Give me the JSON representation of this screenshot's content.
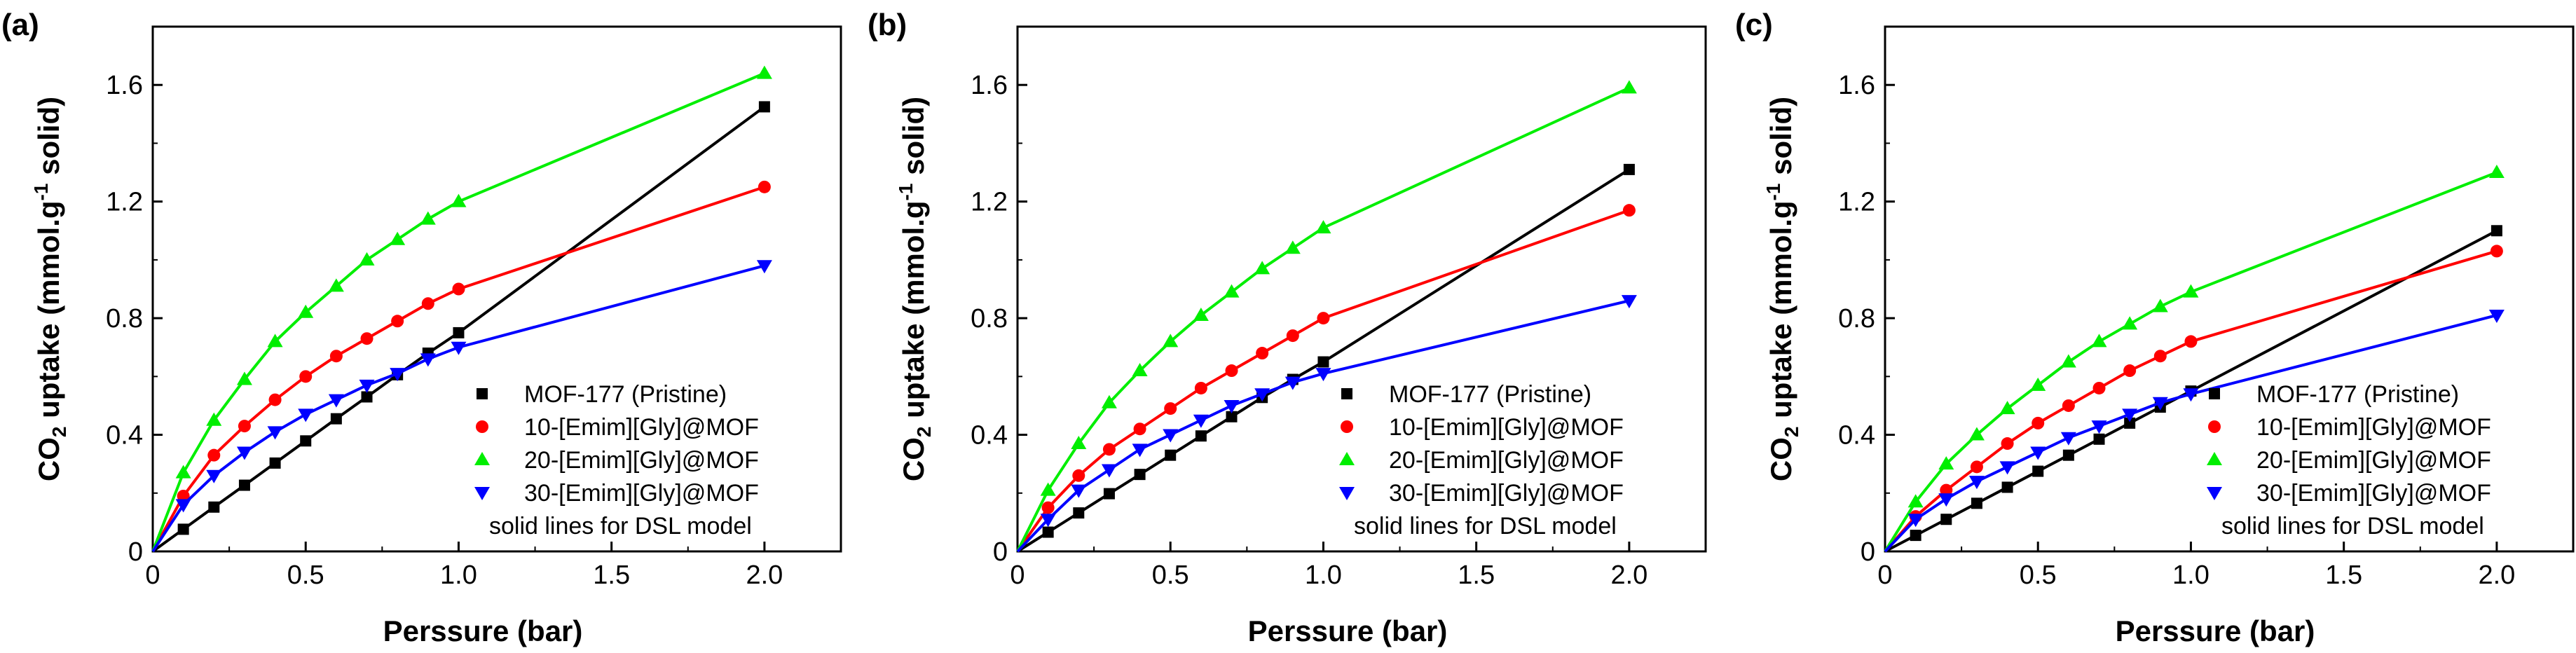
{
  "chart_data": [
    {
      "type": "scatter",
      "panel": "(a)",
      "xlabel": "Perssure (bar)",
      "ylabel_prefix": "CO",
      "ylabel_sub": "2",
      "ylabel_mid": " uptake (mmol.g",
      "ylabel_sup": "-1",
      "ylabel_suffix": " solid)",
      "xlim": [
        0,
        2.25
      ],
      "ylim": [
        0,
        1.8
      ],
      "x_ticks": [
        0,
        0.5,
        1,
        1.5,
        2
      ],
      "x_tick_labels": [
        "0",
        "0.5",
        "1.0",
        "1.5",
        "2.0"
      ],
      "y_ticks": [
        0,
        0.4,
        0.8,
        1.2,
        1.6
      ],
      "y_tick_labels": [
        "0",
        "0.4",
        "0.8",
        "1.2",
        "1.6"
      ],
      "note": "solid lines for DSL model",
      "x": [
        0.1,
        0.2,
        0.3,
        0.4,
        0.5,
        0.6,
        0.7,
        0.8,
        0.9,
        1.0,
        2.0
      ],
      "series": [
        {
          "name": "MOF-177 (Pristine)",
          "color": "#000000",
          "marker": "square",
          "values": [
            0.076,
            0.152,
            0.227,
            0.303,
            0.379,
            0.455,
            0.53,
            0.606,
            0.68,
            0.75,
            1.525
          ]
        },
        {
          "name": "10-[Emim][Gly]@MOF",
          "color": "#ff0000",
          "marker": "circle",
          "values": [
            0.19,
            0.33,
            0.43,
            0.52,
            0.6,
            0.67,
            0.73,
            0.79,
            0.85,
            0.9,
            1.25
          ]
        },
        {
          "name": "20-[Emim][Gly]@MOF",
          "color": "#00ee00",
          "marker": "triangle-up",
          "values": [
            0.27,
            0.45,
            0.59,
            0.72,
            0.82,
            0.91,
            1.0,
            1.07,
            1.14,
            1.2,
            1.64
          ]
        },
        {
          "name": "30-[Emim][Gly]@MOF",
          "color": "#0000ff",
          "marker": "triangle-down",
          "values": [
            0.16,
            0.26,
            0.34,
            0.41,
            0.47,
            0.52,
            0.57,
            0.61,
            0.66,
            0.7,
            0.98
          ]
        }
      ]
    },
    {
      "type": "scatter",
      "panel": "(b)",
      "xlabel": "Perssure (bar)",
      "ylabel_prefix": "CO",
      "ylabel_sub": "2",
      "ylabel_mid": " uptake (mmol.g",
      "ylabel_sup": "-1",
      "ylabel_suffix": " solid)",
      "xlim": [
        0,
        2.25
      ],
      "ylim": [
        0,
        1.8
      ],
      "x_ticks": [
        0,
        0.5,
        1,
        1.5,
        2
      ],
      "x_tick_labels": [
        "0",
        "0.5",
        "1.0",
        "1.5",
        "2.0"
      ],
      "y_ticks": [
        0,
        0.4,
        0.8,
        1.2,
        1.6
      ],
      "y_tick_labels": [
        "0",
        "0.4",
        "0.8",
        "1.2",
        "1.6"
      ],
      "note": "solid lines for DSL model",
      "x": [
        0.1,
        0.2,
        0.3,
        0.4,
        0.5,
        0.6,
        0.7,
        0.8,
        0.9,
        1.0,
        2.0
      ],
      "series": [
        {
          "name": "MOF-177 (Pristine)",
          "color": "#000000",
          "marker": "square",
          "values": [
            0.066,
            0.132,
            0.198,
            0.264,
            0.33,
            0.396,
            0.462,
            0.528,
            0.59,
            0.65,
            1.31
          ]
        },
        {
          "name": "10-[Emim][Gly]@MOF",
          "color": "#ff0000",
          "marker": "circle",
          "values": [
            0.15,
            0.26,
            0.35,
            0.42,
            0.49,
            0.56,
            0.62,
            0.68,
            0.74,
            0.8,
            1.17
          ]
        },
        {
          "name": "20-[Emim][Gly]@MOF",
          "color": "#00ee00",
          "marker": "triangle-up",
          "values": [
            0.21,
            0.37,
            0.51,
            0.62,
            0.72,
            0.81,
            0.89,
            0.97,
            1.04,
            1.11,
            1.59
          ]
        },
        {
          "name": "30-[Emim][Gly]@MOF",
          "color": "#0000ff",
          "marker": "triangle-down",
          "values": [
            0.11,
            0.21,
            0.28,
            0.35,
            0.4,
            0.45,
            0.5,
            0.54,
            0.58,
            0.61,
            0.86
          ]
        }
      ]
    },
    {
      "type": "scatter",
      "panel": "(c)",
      "xlabel": "Perssure (bar)",
      "ylabel_prefix": "CO",
      "ylabel_sub": "2",
      "ylabel_mid": " uptake (mmol.g",
      "ylabel_sup": "-1",
      "ylabel_suffix": " solid)",
      "xlim": [
        0,
        2.25
      ],
      "ylim": [
        0,
        1.8
      ],
      "x_ticks": [
        0,
        0.5,
        1,
        1.5,
        2
      ],
      "x_tick_labels": [
        "0",
        "0.5",
        "1.0",
        "1.5",
        "2.0"
      ],
      "y_ticks": [
        0,
        0.4,
        0.8,
        1.2,
        1.6
      ],
      "y_tick_labels": [
        "0",
        "0.4",
        "0.8",
        "1.2",
        "1.6"
      ],
      "note": "solid lines for DSL model",
      "x": [
        0.1,
        0.2,
        0.3,
        0.4,
        0.5,
        0.6,
        0.7,
        0.8,
        0.9,
        1.0,
        2.0
      ],
      "series": [
        {
          "name": "MOF-177 (Pristine)",
          "color": "#000000",
          "marker": "square",
          "values": [
            0.055,
            0.11,
            0.165,
            0.22,
            0.275,
            0.33,
            0.385,
            0.44,
            0.495,
            0.55,
            1.1
          ]
        },
        {
          "name": "10-[Emim][Gly]@MOF",
          "color": "#ff0000",
          "marker": "circle",
          "values": [
            0.12,
            0.21,
            0.29,
            0.37,
            0.44,
            0.5,
            0.56,
            0.62,
            0.67,
            0.72,
            1.03
          ]
        },
        {
          "name": "20-[Emim][Gly]@MOF",
          "color": "#00ee00",
          "marker": "triangle-up",
          "values": [
            0.17,
            0.3,
            0.4,
            0.49,
            0.57,
            0.65,
            0.72,
            0.78,
            0.84,
            0.89,
            1.3
          ]
        },
        {
          "name": "30-[Emim][Gly]@MOF",
          "color": "#0000ff",
          "marker": "triangle-down",
          "values": [
            0.11,
            0.18,
            0.24,
            0.29,
            0.34,
            0.39,
            0.43,
            0.47,
            0.51,
            0.54,
            0.81
          ]
        }
      ]
    }
  ]
}
